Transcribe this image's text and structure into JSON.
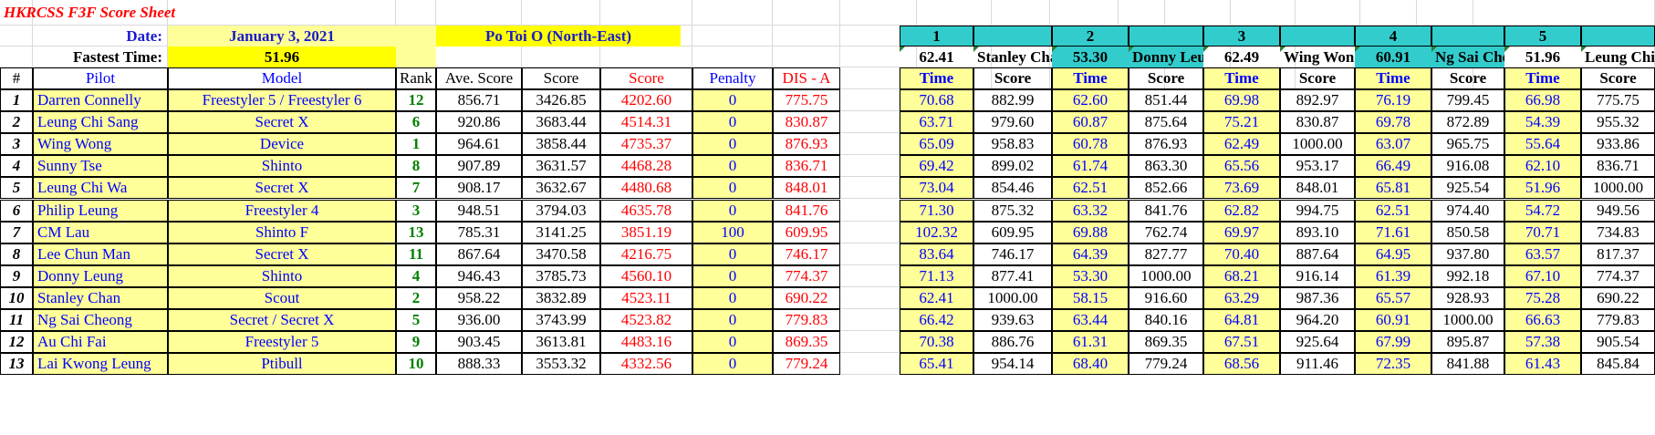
{
  "title": "HKRCSS F3F Score Sheet",
  "date_label": "Date:",
  "date_value": "January 3, 2021",
  "location": "Po Toi O (North-East)",
  "fastest_label": "Fastest Time:",
  "fastest_value": "51.96",
  "headers": {
    "num": "#",
    "pilot": "Pilot",
    "model": "Model",
    "rank": "Rank",
    "ave": "Ave. Score",
    "score": "Score",
    "score2": "Score",
    "penalty": "Penalty",
    "dis": "DIS - A",
    "time": "Time",
    "rscore": "Score"
  },
  "rounds": [
    {
      "num": "1",
      "best_time": "62.41",
      "best_pilot": "Stanley Chan"
    },
    {
      "num": "2",
      "best_time": "53.30",
      "best_pilot": "Donny Leung"
    },
    {
      "num": "3",
      "best_time": "62.49",
      "best_pilot": "Wing Wong"
    },
    {
      "num": "4",
      "best_time": "60.91",
      "best_pilot": "Ng Sai Cheong"
    },
    {
      "num": "5",
      "best_time": "51.96",
      "best_pilot": "Leung Chi Wa"
    }
  ],
  "rows": [
    {
      "n": "1",
      "pilot": "Darren Connelly",
      "model": "Freestyler 5 / Freestyler 6",
      "rank": "12",
      "ave": "856.71",
      "score": "3426.85",
      "score2": "4202.60",
      "penalty": "0",
      "dis": "775.75",
      "r": [
        [
          "70.68",
          "882.99"
        ],
        [
          "62.60",
          "851.44"
        ],
        [
          "69.98",
          "892.97"
        ],
        [
          "76.19",
          "799.45"
        ],
        [
          "66.98",
          "775.75"
        ]
      ]
    },
    {
      "n": "2",
      "pilot": "Leung Chi Sang",
      "model": "Secret X",
      "rank": "6",
      "ave": "920.86",
      "score": "3683.44",
      "score2": "4514.31",
      "penalty": "0",
      "dis": "830.87",
      "r": [
        [
          "63.71",
          "979.60"
        ],
        [
          "60.87",
          "875.64"
        ],
        [
          "75.21",
          "830.87"
        ],
        [
          "69.78",
          "872.89"
        ],
        [
          "54.39",
          "955.32"
        ]
      ]
    },
    {
      "n": "3",
      "pilot": "Wing Wong",
      "model": "Device",
      "rank": "1",
      "ave": "964.61",
      "score": "3858.44",
      "score2": "4735.37",
      "penalty": "0",
      "dis": "876.93",
      "r": [
        [
          "65.09",
          "958.83"
        ],
        [
          "60.78",
          "876.93"
        ],
        [
          "62.49",
          "1000.00"
        ],
        [
          "63.07",
          "965.75"
        ],
        [
          "55.64",
          "933.86"
        ]
      ]
    },
    {
      "n": "4",
      "pilot": "Sunny Tse",
      "model": "Shinto",
      "rank": "8",
      "ave": "907.89",
      "score": "3631.57",
      "score2": "4468.28",
      "penalty": "0",
      "dis": "836.71",
      "r": [
        [
          "69.42",
          "899.02"
        ],
        [
          "61.74",
          "863.30"
        ],
        [
          "65.56",
          "953.17"
        ],
        [
          "66.49",
          "916.08"
        ],
        [
          "62.10",
          "836.71"
        ]
      ]
    },
    {
      "n": "5",
      "pilot": "Leung Chi Wa",
      "model": "Secret X",
      "rank": "7",
      "ave": "908.17",
      "score": "3632.67",
      "score2": "4480.68",
      "penalty": "0",
      "dis": "848.01",
      "r": [
        [
          "73.04",
          "854.46"
        ],
        [
          "62.51",
          "852.66"
        ],
        [
          "73.69",
          "848.01"
        ],
        [
          "65.81",
          "925.54"
        ],
        [
          "51.96",
          "1000.00"
        ]
      ]
    },
    {
      "n": "6",
      "pilot": "Philip Leung",
      "model": "Freestyler 4",
      "rank": "3",
      "ave": "948.51",
      "score": "3794.03",
      "score2": "4635.78",
      "penalty": "0",
      "dis": "841.76",
      "r": [
        [
          "71.30",
          "875.32"
        ],
        [
          "63.32",
          "841.76"
        ],
        [
          "62.82",
          "994.75"
        ],
        [
          "62.51",
          "974.40"
        ],
        [
          "54.72",
          "949.56"
        ]
      ]
    },
    {
      "n": "7",
      "pilot": "CM Lau",
      "model": "Shinto F",
      "rank": "13",
      "ave": "785.31",
      "score": "3141.25",
      "score2": "3851.19",
      "penalty": "100",
      "dis": "609.95",
      "r": [
        [
          "102.32",
          "609.95"
        ],
        [
          "69.88",
          "762.74"
        ],
        [
          "69.97",
          "893.10"
        ],
        [
          "71.61",
          "850.58"
        ],
        [
          "70.71",
          "734.83"
        ]
      ]
    },
    {
      "n": "8",
      "pilot": "Lee Chun Man",
      "model": "Secret X",
      "rank": "11",
      "ave": "867.64",
      "score": "3470.58",
      "score2": "4216.75",
      "penalty": "0",
      "dis": "746.17",
      "r": [
        [
          "83.64",
          "746.17"
        ],
        [
          "64.39",
          "827.77"
        ],
        [
          "70.40",
          "887.64"
        ],
        [
          "64.95",
          "937.80"
        ],
        [
          "63.57",
          "817.37"
        ]
      ]
    },
    {
      "n": "9",
      "pilot": "Donny Leung",
      "model": "Shinto",
      "rank": "4",
      "ave": "946.43",
      "score": "3785.73",
      "score2": "4560.10",
      "penalty": "0",
      "dis": "774.37",
      "r": [
        [
          "71.13",
          "877.41"
        ],
        [
          "53.30",
          "1000.00"
        ],
        [
          "68.21",
          "916.14"
        ],
        [
          "61.39",
          "992.18"
        ],
        [
          "67.10",
          "774.37"
        ]
      ]
    },
    {
      "n": "10",
      "pilot": "Stanley Chan",
      "model": "Scout",
      "rank": "2",
      "ave": "958.22",
      "score": "3832.89",
      "score2": "4523.11",
      "penalty": "0",
      "dis": "690.22",
      "r": [
        [
          "62.41",
          "1000.00"
        ],
        [
          "58.15",
          "916.60"
        ],
        [
          "63.29",
          "987.36"
        ],
        [
          "65.57",
          "928.93"
        ],
        [
          "75.28",
          "690.22"
        ]
      ]
    },
    {
      "n": "11",
      "pilot": "Ng Sai Cheong",
      "model": "Secret / Secret X",
      "rank": "5",
      "ave": "936.00",
      "score": "3743.99",
      "score2": "4523.82",
      "penalty": "0",
      "dis": "779.83",
      "r": [
        [
          "66.42",
          "939.63"
        ],
        [
          "63.44",
          "840.16"
        ],
        [
          "64.81",
          "964.20"
        ],
        [
          "60.91",
          "1000.00"
        ],
        [
          "66.63",
          "779.83"
        ]
      ]
    },
    {
      "n": "12",
      "pilot": "Au Chi Fai",
      "model": "Freestyler 5",
      "rank": "9",
      "ave": "903.45",
      "score": "3613.81",
      "score2": "4483.16",
      "penalty": "0",
      "dis": "869.35",
      "r": [
        [
          "70.38",
          "886.76"
        ],
        [
          "61.31",
          "869.35"
        ],
        [
          "67.51",
          "925.64"
        ],
        [
          "67.99",
          "895.87"
        ],
        [
          "57.38",
          "905.54"
        ]
      ]
    },
    {
      "n": "13",
      "pilot": "Lai Kwong Leung",
      "model": "Ptibull",
      "rank": "10",
      "ave": "888.33",
      "score": "3553.32",
      "score2": "4332.56",
      "penalty": "0",
      "dis": "779.24",
      "r": [
        [
          "65.41",
          "954.14"
        ],
        [
          "68.40",
          "779.24"
        ],
        [
          "68.56",
          "911.46"
        ],
        [
          "72.35",
          "841.88"
        ],
        [
          "61.43",
          "845.84"
        ]
      ]
    }
  ]
}
